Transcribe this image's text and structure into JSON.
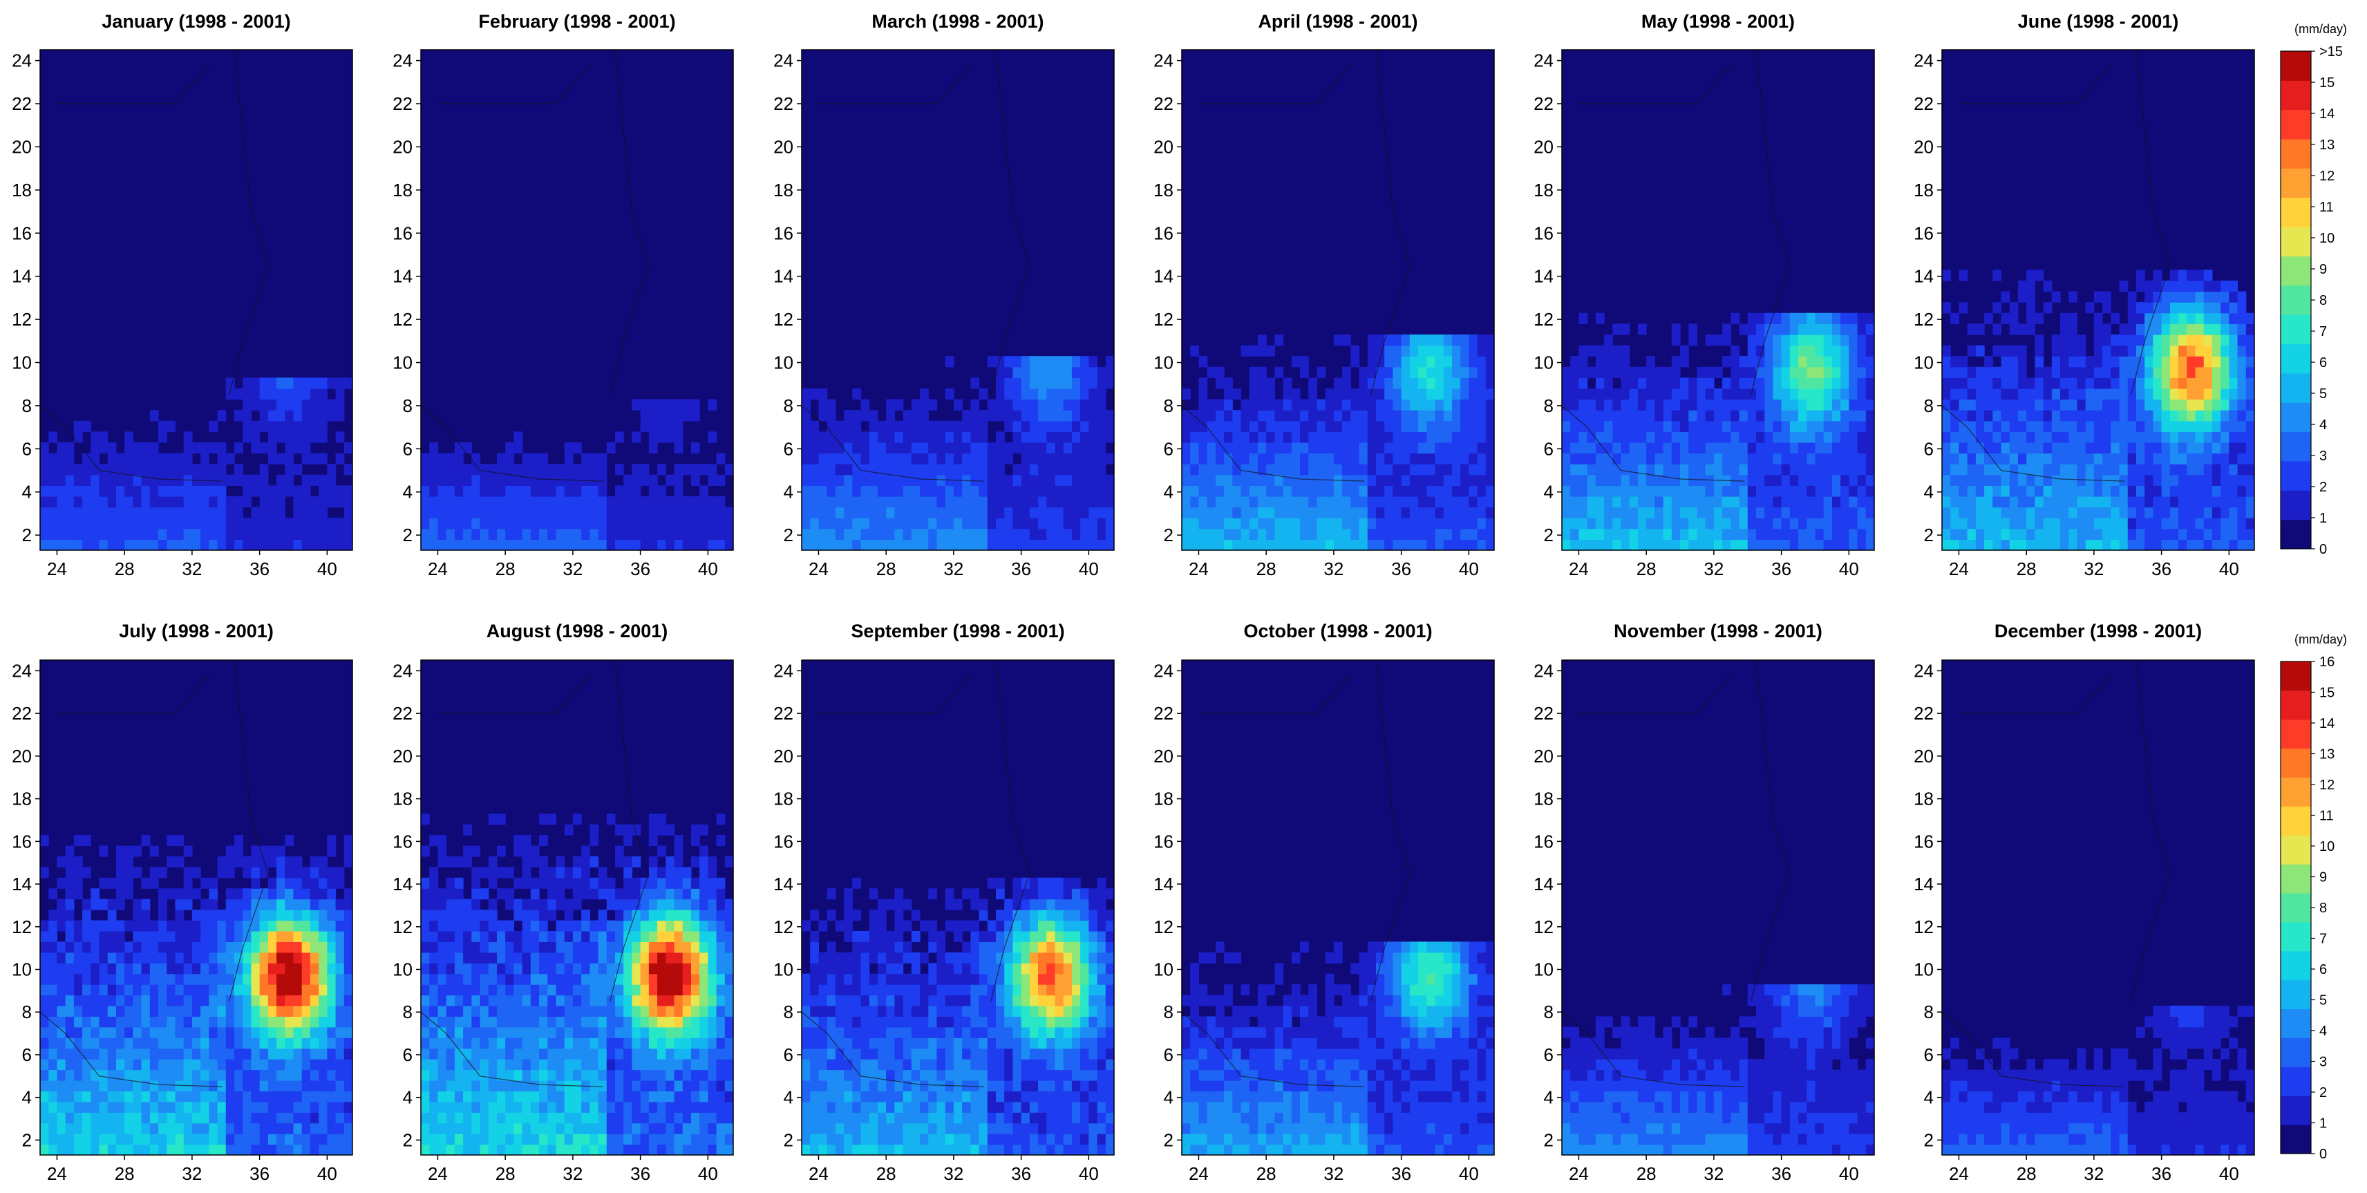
{
  "chart_data": {
    "type": "heatmap",
    "description_note": "",
    "period": "(1998 - 2001)",
    "x_ticks": [
      24,
      28,
      32,
      36,
      40
    ],
    "y_ticks": [
      2,
      4,
      6,
      8,
      10,
      12,
      14,
      16,
      18,
      20,
      22,
      24
    ],
    "xlim": [
      23,
      41.5
    ],
    "ylim": [
      1.3,
      24.5
    ],
    "colorbar_levels": [
      0,
      1,
      2,
      3,
      4,
      5,
      6,
      7,
      8,
      9,
      10,
      11,
      12,
      13,
      14,
      15,
      16
    ],
    "colorbar_colors": [
      "#100a78",
      "#1c1ec8",
      "#1e3cf0",
      "#1e64f5",
      "#1e8cf5",
      "#14b4f0",
      "#14d2e6",
      "#28e6c8",
      "#50e6a0",
      "#8ce678",
      "#e6e650",
      "#ffd23c",
      "#ffa032",
      "#ff7828",
      "#ff3c28",
      "#e61e1e",
      "#b40a0a"
    ],
    "colorbars": [
      {
        "unit": "(mm/day)",
        "top_label": ">15",
        "labels": [
          "0",
          "1",
          "2",
          "3",
          "4",
          "5",
          "6",
          "7",
          "8",
          "9",
          "10",
          "11",
          "12",
          "13",
          "14",
          "15",
          ">15"
        ]
      },
      {
        "unit": "(mm/day)",
        "top_label": "16",
        "labels": [
          "0",
          "1",
          "2",
          "3",
          "4",
          "5",
          "6",
          "7",
          "8",
          "9",
          "10",
          "11",
          "12",
          "13",
          "14",
          "15",
          "16"
        ]
      }
    ],
    "panels": [
      {
        "month": "January",
        "title": "January   (1998 - 2001)",
        "intensity": 0.35,
        "highland": 0.45,
        "southwest": 0.35,
        "north_limit": 8
      },
      {
        "month": "February",
        "title": "February   (1998 - 2001)",
        "intensity": 0.3,
        "highland": 0.4,
        "southwest": 0.4,
        "north_limit": 7
      },
      {
        "month": "March",
        "title": "March   (1998 - 2001)",
        "intensity": 0.45,
        "highland": 0.55,
        "southwest": 0.55,
        "north_limit": 9
      },
      {
        "month": "April",
        "title": "April   (1998 - 2001)",
        "intensity": 0.55,
        "highland": 0.7,
        "southwest": 0.7,
        "north_limit": 10
      },
      {
        "month": "May",
        "title": "May   (1998 - 2001)",
        "intensity": 0.65,
        "highland": 0.8,
        "southwest": 0.75,
        "north_limit": 11
      },
      {
        "month": "June",
        "title": "June   (1998 - 2001)",
        "intensity": 0.8,
        "highland": 1.0,
        "southwest": 0.7,
        "north_limit": 13
      },
      {
        "month": "July",
        "title": "July   (1998 - 2001)",
        "intensity": 1.0,
        "highland": 1.0,
        "southwest": 0.8,
        "north_limit": 15
      },
      {
        "month": "August",
        "title": "August   (1998 - 2001)",
        "intensity": 1.0,
        "highland": 1.0,
        "southwest": 0.85,
        "north_limit": 16
      },
      {
        "month": "September",
        "title": "September   (1998 - 2001)",
        "intensity": 0.85,
        "highland": 0.95,
        "southwest": 0.7,
        "north_limit": 13
      },
      {
        "month": "October",
        "title": "October   (1998 - 2001)",
        "intensity": 0.6,
        "highland": 0.75,
        "southwest": 0.65,
        "north_limit": 10
      },
      {
        "month": "November",
        "title": "November   (1998 - 2001)",
        "intensity": 0.45,
        "highland": 0.55,
        "southwest": 0.55,
        "north_limit": 8
      },
      {
        "month": "December",
        "title": "December   (1998 - 2001)",
        "intensity": 0.35,
        "highland": 0.45,
        "southwest": 0.4,
        "north_limit": 7
      }
    ]
  }
}
